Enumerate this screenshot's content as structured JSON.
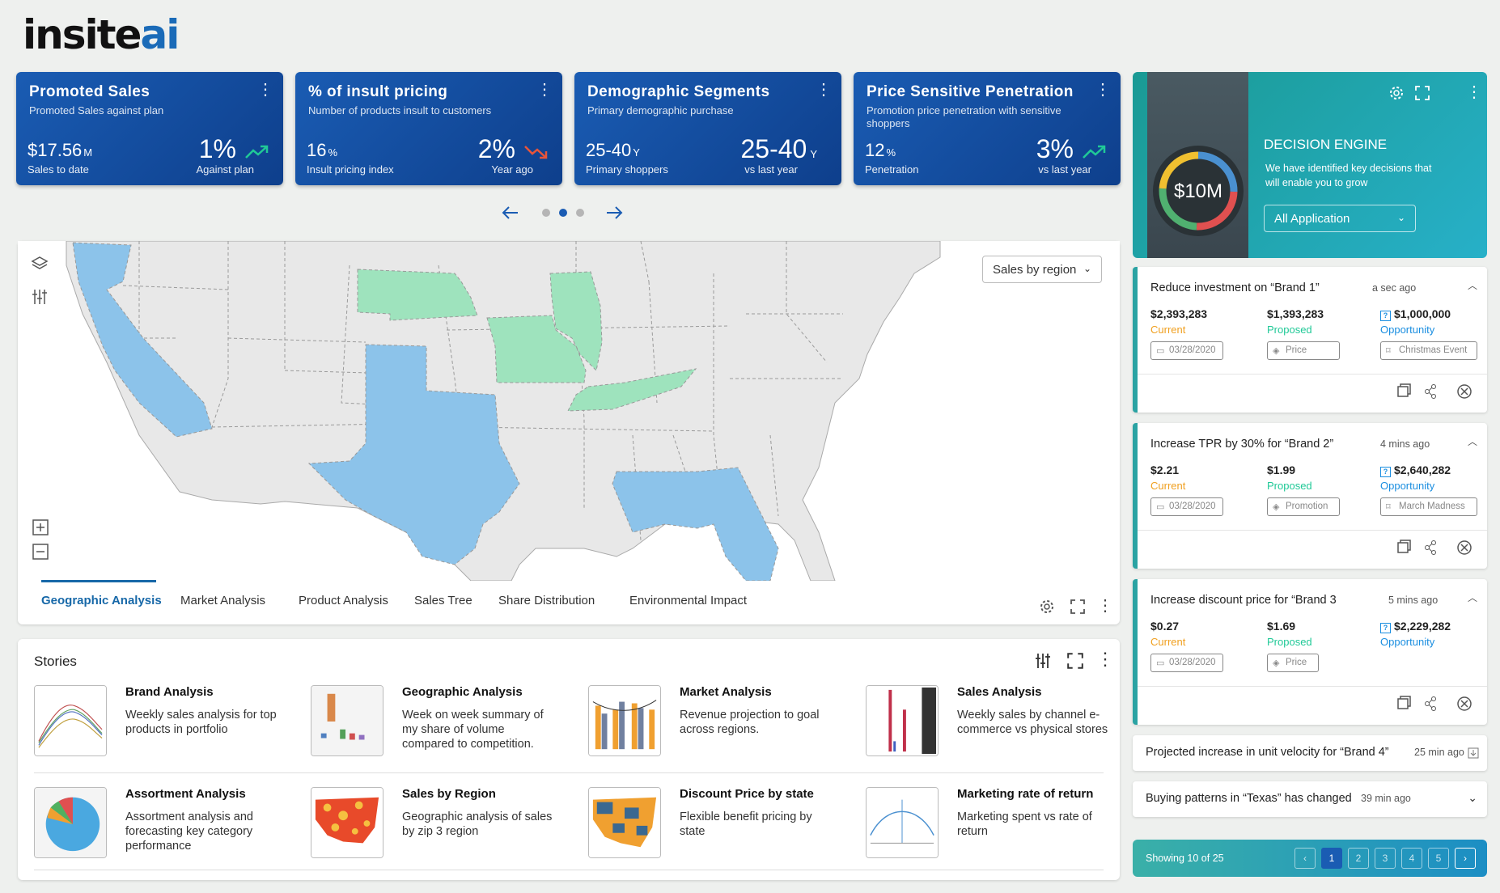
{
  "brand": {
    "name_a": "insite",
    "name_b": "ai"
  },
  "kpis": [
    {
      "title": "Promoted Sales",
      "subtitle": "Promoted Sales against plan",
      "left_value": "$17.56",
      "left_unit": "M",
      "left_label": "Sales to date",
      "right_value": "1%",
      "right_unit": "",
      "right_label": "Against plan",
      "trend": "up"
    },
    {
      "title": "% of insult pricing",
      "subtitle": "Number of products insult to customers",
      "left_value": "16",
      "left_unit": "%",
      "left_label": "Insult pricing index",
      "right_value": "2%",
      "right_unit": "",
      "right_label": "Year ago",
      "trend": "down"
    },
    {
      "title": "Demographic Segments",
      "subtitle": "Primary demographic purchase",
      "left_value": "25-40",
      "left_unit": "Y",
      "left_label": "Primary shoppers",
      "right_value": "25-40",
      "right_unit": "Y",
      "right_label": "vs last year",
      "trend": "none"
    },
    {
      "title": "Price Sensitive Penetration",
      "subtitle": "Promotion price penetration with sensitive shoppers",
      "left_value": "12",
      "left_unit": "%",
      "left_label": "Penetration",
      "right_value": "3%",
      "right_unit": "",
      "right_label": "vs last year",
      "trend": "up"
    }
  ],
  "map": {
    "dropdown": "Sales by region"
  },
  "tabs": [
    "Geographic Analysis",
    "Market Analysis",
    "Product Analysis",
    "Sales Tree",
    "Share Distribution",
    "Environmental Impact"
  ],
  "stories": {
    "title": "Stories",
    "items": [
      {
        "title": "Brand Analysis",
        "desc": "Weekly sales analysis for top products in portfolio"
      },
      {
        "title": "Geographic Analysis",
        "desc": "Week on week summary of my share of volume compared to competition."
      },
      {
        "title": "Market Analysis",
        "desc": "Revenue projection to goal across regions."
      },
      {
        "title": "Sales Analysis",
        "desc": "Weekly sales by channel e-commerce vs physical stores"
      },
      {
        "title": "Assortment Analysis",
        "desc": "Assortment analysis and forecasting key category performance"
      },
      {
        "title": "Sales by Region",
        "desc": "Geographic analysis of sales by zip 3 region"
      },
      {
        "title": "Discount Price by state",
        "desc": "Flexible benefit pricing by state"
      },
      {
        "title": "Marketing rate of return",
        "desc": "Marketing spent vs rate of return"
      }
    ]
  },
  "decision_engine": {
    "amount": "$10M",
    "title": "DECISION ENGINE",
    "desc": "We have identified key decisions that will enable you to grow",
    "select": "All Application"
  },
  "labels": {
    "current": "Current",
    "proposed": "Proposed",
    "opportunity": "Opportunity"
  },
  "cards": [
    {
      "title": "Reduce investment on “Brand 1”",
      "ago": "a sec ago",
      "current": "$2,393,283",
      "proposed": "$1,393,283",
      "opportunity": "$1,000,000",
      "date": "03/28/2020",
      "tag": "Price",
      "event": "Christmas Event"
    },
    {
      "title": "Increase TPR by 30% for “Brand 2”",
      "ago": "4 mins ago",
      "current": "$2.21",
      "proposed": "$1.99",
      "opportunity": "$2,640,282",
      "date": "03/28/2020",
      "tag": "Promotion",
      "event": "March Madness"
    },
    {
      "title": "Increase discount price for “Brand 3",
      "ago": "5 mins ago",
      "current": "$0.27",
      "proposed": "$1.69",
      "opportunity": "$2,229,282",
      "date": "03/28/2020",
      "tag": "Price",
      "event": ""
    }
  ],
  "minis": [
    {
      "title": "Projected increase in unit velocity for “Brand 4”",
      "ago": "25 min ago"
    },
    {
      "title": "Buying patterns in “Texas” has changed",
      "ago": "39 min ago"
    }
  ],
  "footer": {
    "showing": "Showing 10 of 25",
    "pages": [
      "1",
      "2",
      "3",
      "4",
      "5"
    ]
  },
  "colors": {
    "kpi": "#1a5cb3",
    "accent": "#1768a8",
    "green": "#20c997",
    "orange": "#f0a020",
    "map_blue": "#8cc3ea",
    "map_green": "#9ee3bd"
  }
}
